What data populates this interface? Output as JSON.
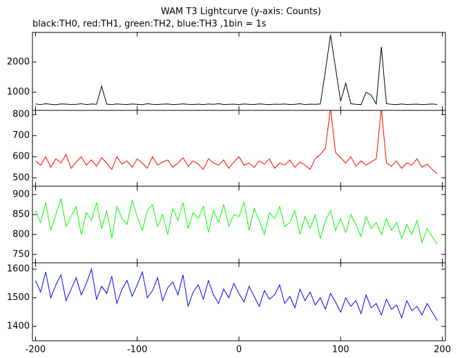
{
  "title": "WAM T3 Lightcurve (y-axis: Counts)",
  "subtitle": "black:TH0, red:TH1, green:TH2, blue:TH3 ,1bin = 1s",
  "chart_data": [
    {
      "type": "line",
      "x": [
        -200,
        -195,
        -190,
        -185,
        -180,
        -175,
        -170,
        -165,
        -160,
        -155,
        -150,
        -145,
        -140,
        -135,
        -130,
        -125,
        -120,
        -115,
        -110,
        -105,
        -100,
        -95,
        -90,
        -85,
        -80,
        -75,
        -70,
        -65,
        -60,
        -55,
        -50,
        -45,
        -40,
        -35,
        -30,
        -25,
        -20,
        -15,
        -10,
        -5,
        0,
        5,
        10,
        15,
        20,
        25,
        30,
        35,
        40,
        45,
        50,
        55,
        60,
        65,
        70,
        75,
        80,
        85,
        90,
        95,
        100,
        105,
        110,
        115,
        120,
        125,
        130,
        135,
        140,
        145,
        150,
        155,
        160,
        165,
        170,
        175,
        180,
        185,
        190,
        195
      ],
      "series": [
        {
          "color": "#000000",
          "values": [
            610,
            590,
            620,
            600,
            585,
            615,
            605,
            595,
            600,
            620,
            590,
            610,
            600,
            1200,
            605,
            590,
            615,
            600,
            595,
            610,
            600,
            585,
            620,
            600,
            595,
            605,
            610,
            590,
            600,
            615,
            600,
            595,
            605,
            590,
            610,
            600,
            620,
            595,
            600,
            605,
            590,
            610,
            600,
            595,
            615,
            600,
            590,
            605,
            600,
            610,
            595,
            600,
            620,
            590,
            605,
            600,
            610,
            1700,
            2900,
            1800,
            700,
            1300,
            620,
            600,
            590,
            1000,
            900,
            610,
            2500,
            620,
            600,
            590,
            610,
            595,
            600,
            605,
            590,
            600,
            610,
            595
          ]
        }
      ],
      "xlim": [
        -203,
        203
      ],
      "xticks": [
        -200,
        -100,
        0,
        100,
        200
      ],
      "ylim": [
        400,
        2980
      ],
      "yticks": [
        1000,
        2000
      ]
    },
    {
      "type": "line",
      "x": [
        -200,
        -195,
        -190,
        -185,
        -180,
        -175,
        -170,
        -165,
        -160,
        -155,
        -150,
        -145,
        -140,
        -135,
        -130,
        -125,
        -120,
        -115,
        -110,
        -105,
        -100,
        -95,
        -90,
        -85,
        -80,
        -75,
        -70,
        -65,
        -60,
        -55,
        -50,
        -45,
        -40,
        -35,
        -30,
        -25,
        -20,
        -15,
        -10,
        -5,
        0,
        5,
        10,
        15,
        20,
        25,
        30,
        35,
        40,
        45,
        50,
        55,
        60,
        65,
        70,
        75,
        80,
        85,
        90,
        95,
        100,
        105,
        110,
        115,
        120,
        125,
        130,
        135,
        140,
        145,
        150,
        155,
        160,
        165,
        170,
        175,
        180,
        185,
        190,
        195
      ],
      "series": [
        {
          "color": "#ff0000",
          "values": [
            580,
            560,
            600,
            550,
            590,
            570,
            610,
            545,
            575,
            600,
            560,
            585,
            555,
            595,
            570,
            540,
            600,
            565,
            580,
            550,
            590,
            570,
            545,
            600,
            560,
            575,
            585,
            550,
            570,
            595,
            555,
            580,
            565,
            540,
            590,
            570,
            560,
            585,
            545,
            575,
            600,
            560,
            570,
            550,
            580,
            565,
            590,
            545,
            570,
            560,
            585,
            550,
            575,
            560,
            540,
            590,
            610,
            640,
            830,
            620,
            595,
            570,
            600,
            555,
            580,
            560,
            575,
            590,
            830,
            570,
            555,
            580,
            545,
            570,
            560,
            590,
            550,
            565,
            540,
            520
          ]
        }
      ],
      "xlim": [
        -203,
        203
      ],
      "xticks": [
        -200,
        -100,
        0,
        100,
        200
      ],
      "ylim": [
        460,
        820
      ],
      "yticks": [
        500,
        600,
        700,
        800
      ]
    },
    {
      "type": "line",
      "x": [
        -200,
        -195,
        -190,
        -185,
        -180,
        -175,
        -170,
        -165,
        -160,
        -155,
        -150,
        -145,
        -140,
        -135,
        -130,
        -125,
        -120,
        -115,
        -110,
        -105,
        -100,
        -95,
        -90,
        -85,
        -80,
        -75,
        -70,
        -65,
        -60,
        -55,
        -50,
        -45,
        -40,
        -35,
        -30,
        -25,
        -20,
        -15,
        -10,
        -5,
        0,
        5,
        10,
        15,
        20,
        25,
        30,
        35,
        40,
        45,
        50,
        55,
        60,
        65,
        70,
        75,
        80,
        85,
        90,
        95,
        100,
        105,
        110,
        115,
        120,
        125,
        130,
        135,
        140,
        145,
        150,
        155,
        160,
        165,
        170,
        175,
        180,
        185,
        190,
        195
      ],
      "series": [
        {
          "color": "#00ff00",
          "values": [
            860,
            830,
            880,
            810,
            850,
            890,
            820,
            845,
            870,
            800,
            855,
            835,
            880,
            815,
            860,
            790,
            870,
            840,
            825,
            885,
            845,
            810,
            860,
            875,
            820,
            850,
            800,
            865,
            835,
            880,
            815,
            855,
            840,
            870,
            805,
            860,
            830,
            875,
            820,
            850,
            845,
            880,
            810,
            865,
            835,
            800,
            855,
            840,
            870,
            820,
            830,
            860,
            800,
            845,
            815,
            850,
            790,
            835,
            860,
            810,
            840,
            805,
            850,
            825,
            795,
            845,
            815,
            830,
            800,
            840,
            810,
            830,
            790,
            825,
            800,
            835,
            780,
            815,
            795,
            775
          ]
        }
      ],
      "xlim": [
        -203,
        203
      ],
      "xticks": [
        -200,
        -100,
        0,
        100,
        200
      ],
      "ylim": [
        729,
        921
      ],
      "yticks": [
        750,
        800,
        850,
        900
      ]
    },
    {
      "type": "line",
      "x": [
        -200,
        -195,
        -190,
        -185,
        -180,
        -175,
        -170,
        -165,
        -160,
        -155,
        -150,
        -145,
        -140,
        -135,
        -130,
        -125,
        -120,
        -115,
        -110,
        -105,
        -100,
        -95,
        -90,
        -85,
        -80,
        -75,
        -70,
        -65,
        -60,
        -55,
        -50,
        -45,
        -40,
        -35,
        -30,
        -25,
        -20,
        -15,
        -10,
        -5,
        0,
        5,
        10,
        15,
        20,
        25,
        30,
        35,
        40,
        45,
        50,
        55,
        60,
        65,
        70,
        75,
        80,
        85,
        90,
        95,
        100,
        105,
        110,
        115,
        120,
        125,
        130,
        135,
        140,
        145,
        150,
        155,
        160,
        165,
        170,
        175,
        180,
        185,
        190,
        195
      ],
      "series": [
        {
          "color": "#0000ff",
          "values": [
            1560,
            1520,
            1590,
            1500,
            1545,
            1580,
            1490,
            1530,
            1570,
            1510,
            1550,
            1600,
            1495,
            1540,
            1515,
            1575,
            1480,
            1530,
            1560,
            1505,
            1545,
            1590,
            1500,
            1525,
            1570,
            1490,
            1535,
            1555,
            1510,
            1580,
            1470,
            1520,
            1545,
            1495,
            1560,
            1510,
            1480,
            1530,
            1500,
            1550,
            1515,
            1485,
            1540,
            1505,
            1470,
            1525,
            1495,
            1510,
            1545,
            1480,
            1505,
            1465,
            1530,
            1490,
            1520,
            1475,
            1500,
            1460,
            1515,
            1485,
            1450,
            1500,
            1470,
            1490,
            1445,
            1510,
            1465,
            1480,
            1440,
            1495,
            1460,
            1475,
            1430,
            1490,
            1455,
            1470,
            1440,
            1480,
            1450,
            1420
          ]
        }
      ],
      "xlim": [
        -203,
        203
      ],
      "xticks": [
        -200,
        -100,
        0,
        100,
        200
      ],
      "ylim": [
        1350,
        1622
      ],
      "yticks": [
        1400,
        1500,
        1600
      ]
    }
  ]
}
